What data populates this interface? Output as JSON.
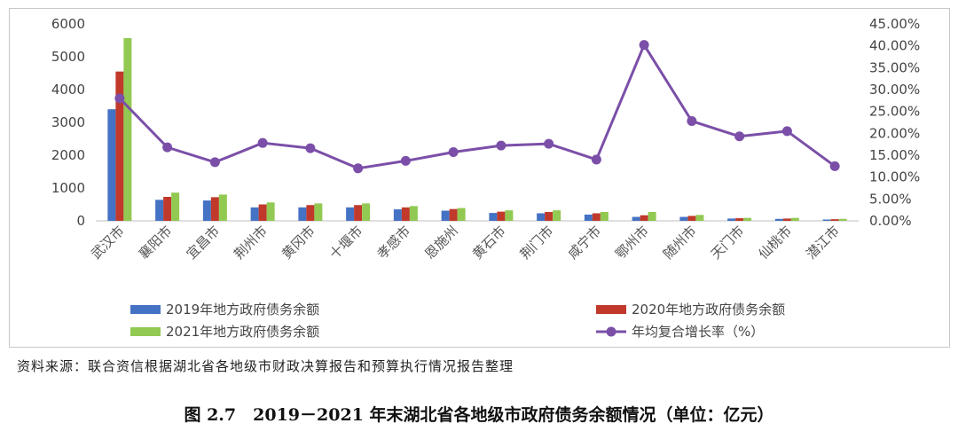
{
  "chart_data": {
    "type": "bar",
    "categories": [
      "武汉市",
      "襄阳市",
      "宜昌市",
      "荆州市",
      "黄冈市",
      "十堰市",
      "孝感市",
      "恩施州",
      "黄石市",
      "荆门市",
      "咸宁市",
      "鄂州市",
      "随州市",
      "天门市",
      "仙桃市",
      "潜江市"
    ],
    "series": [
      {
        "name": "2019年地方政府债务余额",
        "type": "bar",
        "axis": "left",
        "color": "#4472c4",
        "values": [
          3400,
          640,
          620,
          410,
          410,
          410,
          350,
          310,
          240,
          230,
          190,
          120,
          120,
          70,
          60,
          40
        ]
      },
      {
        "name": "2020年地方政府债务余额",
        "type": "bar",
        "axis": "left",
        "color": "#c0392b",
        "values": [
          4550,
          730,
          720,
          500,
          480,
          480,
          410,
          360,
          280,
          270,
          230,
          170,
          150,
          80,
          70,
          50
        ]
      },
      {
        "name": "2021年地方政府债务余额",
        "type": "bar",
        "axis": "left",
        "color": "#92c952",
        "values": [
          5570,
          860,
          800,
          560,
          530,
          530,
          450,
          390,
          320,
          320,
          270,
          270,
          180,
          90,
          90,
          60
        ]
      },
      {
        "name": "年均复合增长率（%）",
        "type": "line",
        "axis": "right",
        "color": "#7b4fa8",
        "values": [
          0.28,
          0.168,
          0.134,
          0.178,
          0.166,
          0.12,
          0.137,
          0.157,
          0.172,
          0.176,
          0.14,
          0.402,
          0.228,
          0.193,
          0.205,
          0.125
        ]
      }
    ],
    "left_axis": {
      "ylim": [
        0,
        6000
      ],
      "ticks": [
        "0",
        "1000",
        "2000",
        "3000",
        "4000",
        "5000",
        "6000"
      ]
    },
    "right_axis": {
      "ylim": [
        0,
        0.45
      ],
      "ticks": [
        "0.00%",
        "5.00%",
        "10.00%",
        "15.00%",
        "20.00%",
        "25.00%",
        "30.00%",
        "35.00%",
        "40.00%",
        "45.00%"
      ]
    },
    "grid": false,
    "legend_position": "bottom"
  },
  "source_note": "资料来源：联合资信根据湖北省各地级市财政决算报告和预算执行情况报告整理",
  "caption": "图 2.7　2019－2021 年末湖北省各地级市政府债务余额情况（单位：亿元）"
}
